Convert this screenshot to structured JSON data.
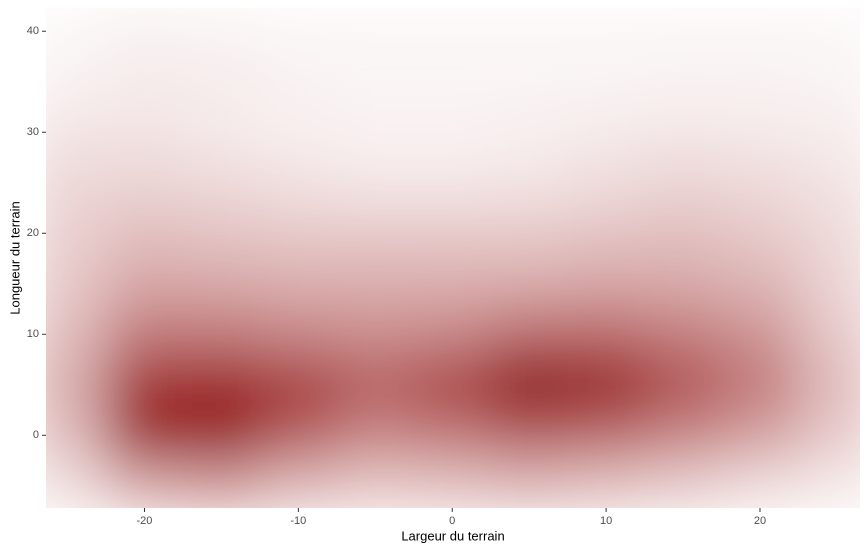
{
  "chart_data": {
    "type": "heatmap",
    "x_label": "Largeur du terrain",
    "y_label": "Longueur du terrain",
    "xlim": [
      -26.4,
      26.5
    ],
    "ylim": [
      -7.2,
      42.3
    ],
    "xticks": [
      -20,
      -10,
      0,
      10,
      20
    ],
    "yticks": [
      0,
      10,
      20,
      30,
      40
    ],
    "x": [
      -25,
      -20,
      -15,
      -10,
      -5,
      0,
      5,
      10,
      15,
      20,
      25
    ],
    "y": [
      40,
      35,
      30,
      25,
      20,
      15,
      10,
      5,
      0,
      -5
    ],
    "z": [
      [
        0.03,
        0.05,
        0.04,
        0.03,
        0.03,
        0.03,
        0.03,
        0.03,
        0.03,
        0.03,
        0.03
      ],
      [
        0.05,
        0.08,
        0.07,
        0.05,
        0.04,
        0.04,
        0.04,
        0.04,
        0.05,
        0.05,
        0.04
      ],
      [
        0.1,
        0.1,
        0.08,
        0.06,
        0.05,
        0.05,
        0.06,
        0.08,
        0.09,
        0.08,
        0.07
      ],
      [
        0.15,
        0.16,
        0.14,
        0.11,
        0.09,
        0.09,
        0.1,
        0.13,
        0.16,
        0.14,
        0.1
      ],
      [
        0.18,
        0.24,
        0.22,
        0.2,
        0.2,
        0.2,
        0.2,
        0.22,
        0.24,
        0.2,
        0.14
      ],
      [
        0.2,
        0.33,
        0.32,
        0.3,
        0.3,
        0.3,
        0.31,
        0.33,
        0.32,
        0.28,
        0.16
      ],
      [
        0.25,
        0.5,
        0.5,
        0.45,
        0.42,
        0.45,
        0.55,
        0.55,
        0.48,
        0.4,
        0.2
      ],
      [
        0.3,
        0.75,
        0.8,
        0.72,
        0.6,
        0.7,
        0.95,
        0.85,
        0.65,
        0.5,
        0.25
      ],
      [
        0.25,
        0.8,
        0.85,
        0.6,
        0.45,
        0.5,
        0.6,
        0.55,
        0.45,
        0.35,
        0.2
      ],
      [
        0.12,
        0.3,
        0.35,
        0.25,
        0.2,
        0.22,
        0.25,
        0.22,
        0.18,
        0.12,
        0.08
      ]
    ],
    "colors": [
      "#ffffff",
      "#8b0000"
    ]
  }
}
